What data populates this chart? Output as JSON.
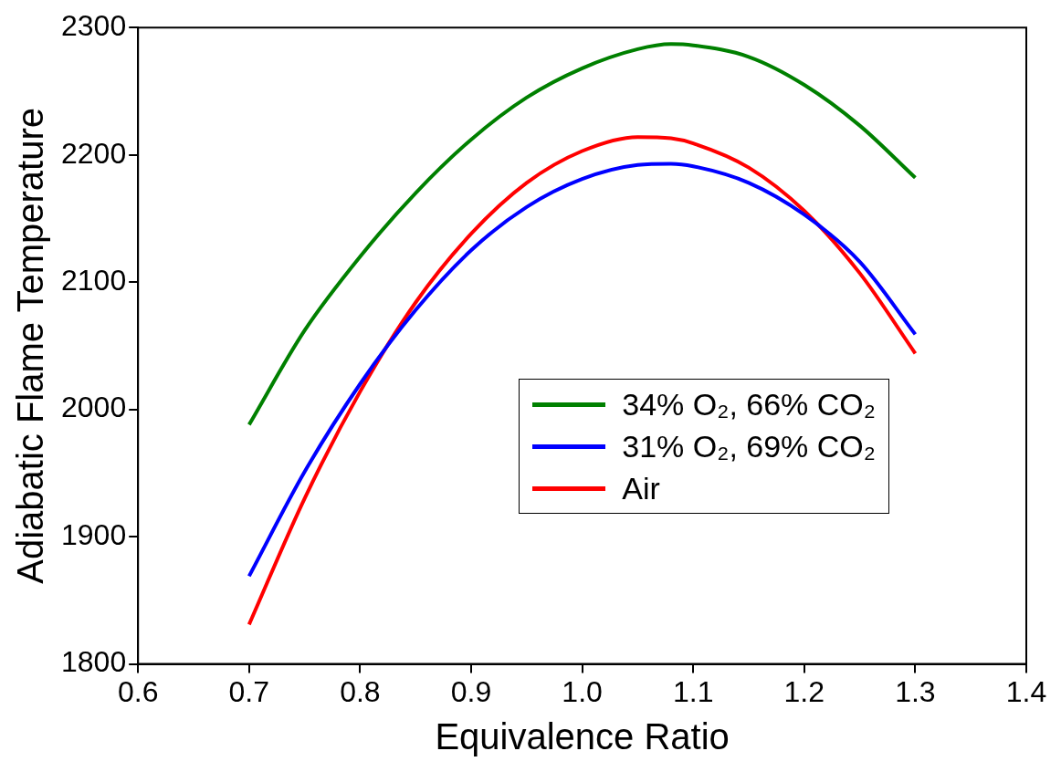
{
  "chart_data": {
    "type": "line",
    "xlabel": "Equivalence Ratio",
    "ylabel": "Adiabatic Flame Temperature",
    "xlim": [
      0.6,
      1.4
    ],
    "xticks": [
      {
        "value": 0.6,
        "label": "0.6"
      },
      {
        "value": 0.7,
        "label": "0.7"
      },
      {
        "value": 0.8,
        "label": "0.8"
      },
      {
        "value": 0.9,
        "label": "0.9"
      },
      {
        "value": 1.0,
        "label": "1.0"
      },
      {
        "value": 1.1,
        "label": "1.1"
      },
      {
        "value": 1.2,
        "label": "1.2"
      },
      {
        "value": 1.3,
        "label": "1.3"
      },
      {
        "value": 1.4,
        "label": "1.4"
      }
    ],
    "ylim": [
      1800,
      2300
    ],
    "yticks": [
      1800,
      1900,
      2000,
      2100,
      2200,
      2300
    ],
    "x": [
      0.7,
      0.75,
      0.8,
      0.85,
      0.9,
      0.95,
      1.0,
      1.05,
      1.08,
      1.1,
      1.15,
      1.2,
      1.25,
      1.3
    ],
    "series": [
      {
        "name": "34% O₂, 66% CO₂",
        "color": "#008000",
        "values": [
          1988,
          2062,
          2120,
          2170,
          2212,
          2245,
          2268,
          2283,
          2287,
          2286,
          2277,
          2255,
          2223,
          2182
        ]
      },
      {
        "name": "31% O₂, 69% CO₂",
        "color": "#0000ff",
        "values": [
          1869,
          1951,
          2020,
          2078,
          2125,
          2159,
          2181,
          2192,
          2193,
          2191,
          2178,
          2153,
          2116,
          2059
        ]
      },
      {
        "name": "Air",
        "color": "#ff0000",
        "values": [
          1831,
          1930,
          2014,
          2084,
          2138,
          2178,
          2203,
          2214,
          2213,
          2209,
          2190,
          2156,
          2107,
          2044
        ]
      }
    ],
    "grid": false,
    "legend": "right",
    "marker": "none",
    "line_style": "solid"
  }
}
